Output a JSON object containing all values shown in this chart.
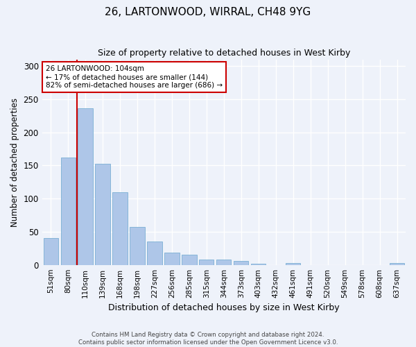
{
  "title1": "26, LARTONWOOD, WIRRAL, CH48 9YG",
  "title2": "Size of property relative to detached houses in West Kirby",
  "xlabel": "Distribution of detached houses by size in West Kirby",
  "ylabel": "Number of detached properties",
  "categories": [
    "51sqm",
    "80sqm",
    "110sqm",
    "139sqm",
    "168sqm",
    "198sqm",
    "227sqm",
    "256sqm",
    "285sqm",
    "315sqm",
    "344sqm",
    "373sqm",
    "403sqm",
    "432sqm",
    "461sqm",
    "491sqm",
    "520sqm",
    "549sqm",
    "578sqm",
    "608sqm",
    "637sqm"
  ],
  "values": [
    40,
    162,
    236,
    153,
    110,
    57,
    35,
    19,
    15,
    8,
    8,
    6,
    2,
    0,
    3,
    0,
    0,
    0,
    0,
    0,
    3
  ],
  "bar_color": "#aec6e8",
  "bar_edge_color": "#7aafd4",
  "vline_color": "#cc0000",
  "vline_x_idx": 2,
  "annotation_text": "26 LARTONWOOD: 104sqm\n← 17% of detached houses are smaller (144)\n82% of semi-detached houses are larger (686) →",
  "annotation_box_color": "#ffffff",
  "annotation_box_edge": "#cc0000",
  "ylim": [
    0,
    310
  ],
  "yticks": [
    0,
    50,
    100,
    150,
    200,
    250,
    300
  ],
  "background_color": "#eef2fa",
  "grid_color": "#ffffff",
  "footer": "Contains HM Land Registry data © Crown copyright and database right 2024.\nContains public sector information licensed under the Open Government Licence v3.0."
}
